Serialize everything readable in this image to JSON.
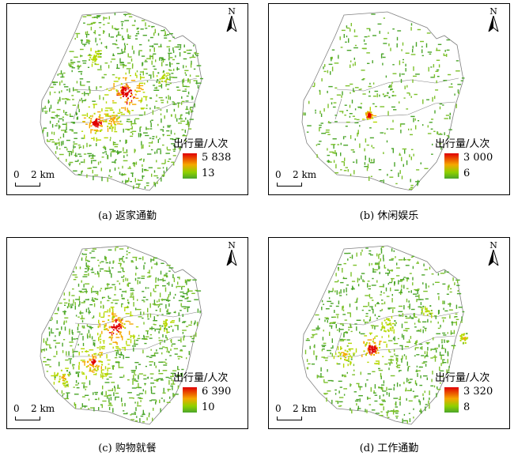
{
  "north_label": "N",
  "scale": {
    "zero": "0",
    "distance": "2 km"
  },
  "legend_title": "出行量/人次",
  "colors": {
    "high": "#e00000",
    "mid": "#f5a800",
    "low": "#4aa52a",
    "boundary": "#808080"
  },
  "panels": [
    {
      "caption": "(a) 返家通勤",
      "max": "5 838",
      "min": "13"
    },
    {
      "caption": "(b) 休闲娱乐",
      "max": "3 000",
      "min": "6"
    },
    {
      "caption": "(c) 购物就餐",
      "max": "6 390",
      "min": "10"
    },
    {
      "caption": "(d) 工作通勤",
      "max": "3 320",
      "min": "8"
    }
  ]
}
